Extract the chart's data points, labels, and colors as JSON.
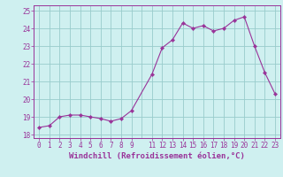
{
  "x": [
    0,
    1,
    2,
    3,
    4,
    5,
    6,
    7,
    8,
    9,
    11,
    12,
    13,
    14,
    15,
    16,
    17,
    18,
    19,
    20,
    21,
    22,
    23
  ],
  "y": [
    18.4,
    18.5,
    19.0,
    19.1,
    19.1,
    19.0,
    18.9,
    18.75,
    18.9,
    19.35,
    21.4,
    22.9,
    23.35,
    24.3,
    24.0,
    24.15,
    23.85,
    24.0,
    24.45,
    24.65,
    23.0,
    21.5,
    20.3
  ],
  "line_color": "#993399",
  "marker": "D",
  "marker_size": 2.2,
  "bg_color": "#cff0f0",
  "grid_color": "#99cccc",
  "xlabel": "Windchill (Refroidissement éolien,°C)",
  "xlabel_fontsize": 6.5,
  "xlim": [
    -0.5,
    23.5
  ],
  "ylim": [
    17.8,
    25.3
  ],
  "yticks": [
    18,
    19,
    20,
    21,
    22,
    23,
    24,
    25
  ],
  "xticks": [
    0,
    1,
    2,
    3,
    4,
    5,
    6,
    7,
    8,
    9,
    11,
    12,
    13,
    14,
    15,
    16,
    17,
    18,
    19,
    20,
    21,
    22,
    23
  ],
  "tick_color": "#993399",
  "tick_fontsize": 5.5,
  "axis_label_color": "#993399",
  "spine_color": "#993399"
}
